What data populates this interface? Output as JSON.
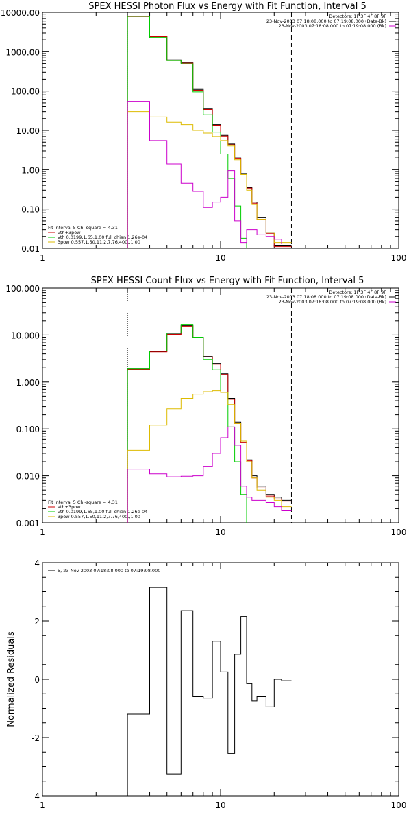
{
  "chart_data": [
    {
      "type": "line",
      "title": "SPEX HESSI Photon Flux vs Energy with Fit Function, Interval 5",
      "x_scale": "log",
      "y_scale": "log",
      "xlim": [
        1,
        100
      ],
      "ylim": [
        0.01,
        10000
      ],
      "x_ticks": [
        1,
        10,
        100
      ],
      "x_tick_labels": [
        "1",
        "10",
        "100"
      ],
      "y_ticks": [
        0.01,
        0.1,
        1,
        10,
        100,
        1000,
        10000
      ],
      "y_tick_labels": [
        "0.01",
        "0.10",
        "1.00",
        "10.00",
        "100.00",
        "1000.00",
        "10000.00"
      ],
      "vlines": [
        {
          "x": 3,
          "style": "dotted"
        },
        {
          "x": 25,
          "style": "dashed"
        }
      ],
      "legend_top": [
        "Detectors: 1F 3F 4F 8F 9F",
        "23-Nov-2003 07:18:08.000 to 07:19:08.000 (Data-Bk)",
        "23-Nov-2003 07:18:08.000 to 07:19:08.000 (Bk)"
      ],
      "legend_top_colors": [
        "#000000",
        "#000000",
        "#cc00cc"
      ],
      "legend_bottom_title": "Fit Interval 5   Chi-square = 4.31",
      "legend_bottom": [
        "vth+3pow",
        "vth 0.0199,1.65,1.00  full chian 1.26e-04",
        "3pow 0.557,1.50,11.2,7.76,400.,1.00"
      ],
      "legend_bottom_colors": [
        "#cc0000",
        "#00cc00",
        "#ddbb00"
      ],
      "edges": [
        3.0,
        4.0,
        5.0,
        6.0,
        7.0,
        8.0,
        9.0,
        10.0,
        11.0,
        12.0,
        13.0,
        14.0,
        15.0,
        16.0,
        18.0,
        20.0,
        22.0,
        25.0
      ],
      "series": [
        {
          "color": "#000000",
          "values": [
            8000,
            2500,
            620,
            520,
            110,
            35,
            14,
            7.5,
            4.5,
            2.0,
            0.8,
            0.35,
            0.15,
            0.06,
            0.025,
            0.012,
            0.012
          ]
        },
        {
          "color": "#cc0000",
          "values": [
            7800,
            2400,
            600,
            510,
            105,
            34,
            13.5,
            7.2,
            4.3,
            1.9,
            0.78,
            0.34,
            0.14,
            0.055,
            0.024,
            0.011,
            0.011
          ]
        },
        {
          "color": "#00cc00",
          "values": [
            7900,
            2300,
            600,
            490,
            95,
            25,
            9,
            2.5,
            0.6,
            0.12,
            0.018,
            0.0,
            0.0,
            0.0,
            0.0,
            0.0,
            0.0
          ]
        },
        {
          "color": "#ddbb00",
          "values": [
            30,
            22,
            16,
            14,
            10,
            8.5,
            7,
            5.5,
            4,
            1.8,
            0.75,
            0.3,
            0.13,
            0.055,
            0.025,
            0.014,
            0.014
          ]
        },
        {
          "color": "#cc00cc",
          "values": [
            55,
            5.5,
            1.4,
            0.45,
            0.28,
            0.11,
            0.15,
            0.2,
            0.95,
            0.05,
            0.014,
            0.03,
            0.03,
            0.022,
            0.02,
            0.017,
            0.013
          ]
        }
      ]
    },
    {
      "type": "line",
      "title": "SPEX HESSI Count Flux vs Energy with Fit Function, Interval 5",
      "x_scale": "log",
      "y_scale": "log",
      "xlim": [
        1,
        100
      ],
      "ylim": [
        0.001,
        100
      ],
      "x_ticks": [
        1,
        10,
        100
      ],
      "x_tick_labels": [
        "1",
        "10",
        "100"
      ],
      "y_ticks": [
        0.001,
        0.01,
        0.1,
        1,
        10,
        100
      ],
      "y_tick_labels": [
        "0.001",
        "0.010",
        "0.100",
        "1.000",
        "10.000",
        "100.000"
      ],
      "vlines": [
        {
          "x": 3,
          "style": "dotted"
        },
        {
          "x": 25,
          "style": "dashed"
        }
      ],
      "legend_top": [
        "Detectors: 1F 3F 4F 8F 9F",
        "23-Nov-2003 07:18:08.000 to 07:19:08.000 (Data-Bk)",
        "23-Nov-2003 07:18:08.000 to 07:19:08.000 (Bk)"
      ],
      "legend_top_colors": [
        "#000000",
        "#000000",
        "#cc00cc"
      ],
      "legend_bottom_title": "Fit Interval 5   Chi-square = 4.31",
      "legend_bottom": [
        "vth+3pow",
        "vth 0.0199,1.65,1.00  full chian 1.26e-04",
        "3pow 0.557,1.50,11.2,7.76,400.,1.00"
      ],
      "legend_bottom_colors": [
        "#cc0000",
        "#00cc00",
        "#ddbb00"
      ],
      "edges": [
        3.0,
        4.0,
        5.0,
        6.0,
        7.0,
        8.0,
        9.0,
        10.0,
        11.0,
        12.0,
        13.0,
        14.0,
        15.0,
        16.0,
        18.0,
        20.0,
        22.0,
        25.0
      ],
      "series": [
        {
          "color": "#000000",
          "values": [
            1.9,
            4.5,
            10.5,
            16,
            9,
            3.5,
            2.5,
            1.5,
            0.45,
            0.14,
            0.055,
            0.022,
            0.01,
            0.006,
            0.004,
            0.0035,
            0.003
          ]
        },
        {
          "color": "#cc0000",
          "values": [
            1.85,
            4.4,
            10.3,
            15.5,
            8.8,
            3.4,
            2.4,
            1.45,
            0.43,
            0.13,
            0.052,
            0.021,
            0.009,
            0.0055,
            0.0037,
            0.0032,
            0.0028
          ]
        },
        {
          "color": "#00cc00",
          "values": [
            1.9,
            4.6,
            11,
            17,
            9,
            3.0,
            1.8,
            0.6,
            0.11,
            0.02,
            0.004,
            0.0006,
            0.0,
            0.0,
            0.0,
            0.0,
            0.0
          ]
        },
        {
          "color": "#ddbb00",
          "values": [
            0.035,
            0.12,
            0.27,
            0.45,
            0.55,
            0.62,
            0.65,
            0.6,
            0.33,
            0.13,
            0.055,
            0.02,
            0.009,
            0.005,
            0.0035,
            0.003,
            0.0022
          ]
        },
        {
          "color": "#cc00cc",
          "values": [
            0.014,
            0.011,
            0.0095,
            0.0098,
            0.01,
            0.016,
            0.03,
            0.065,
            0.11,
            0.045,
            0.006,
            0.0035,
            0.003,
            0.003,
            0.0027,
            0.0022,
            0.0018
          ]
        }
      ]
    },
    {
      "type": "line",
      "title": "",
      "ylabel": "Normalized Residuals",
      "x_scale": "log",
      "y_scale": "linear",
      "xlim": [
        1,
        100
      ],
      "ylim": [
        -4,
        4
      ],
      "x_ticks": [
        1,
        10,
        100
      ],
      "x_tick_labels": [
        "1",
        "10",
        "100"
      ],
      "y_ticks": [
        -4,
        -2,
        0,
        2,
        4
      ],
      "y_tick_labels": [
        "-4",
        "-2",
        "0",
        "2",
        "4"
      ],
      "legend_top": [
        "5, 23-Nov-2003 07:18:08.000 to 07:19:08.000"
      ],
      "legend_top_colors": [
        "#000000"
      ],
      "edges": [
        3.0,
        4.0,
        5.0,
        6.0,
        7.0,
        8.0,
        9.0,
        10.0,
        11.0,
        12.0,
        13.0,
        14.0,
        15.0,
        16.0,
        18.0,
        20.0,
        22.0,
        25.0
      ],
      "series": [
        {
          "color": "#000000",
          "values": [
            -1.2,
            3.15,
            -3.25,
            2.35,
            -0.6,
            -0.65,
            1.3,
            0.25,
            -2.55,
            0.85,
            2.15,
            -0.15,
            -0.75,
            -0.6,
            -0.95,
            0.0,
            -0.05
          ]
        }
      ]
    }
  ]
}
